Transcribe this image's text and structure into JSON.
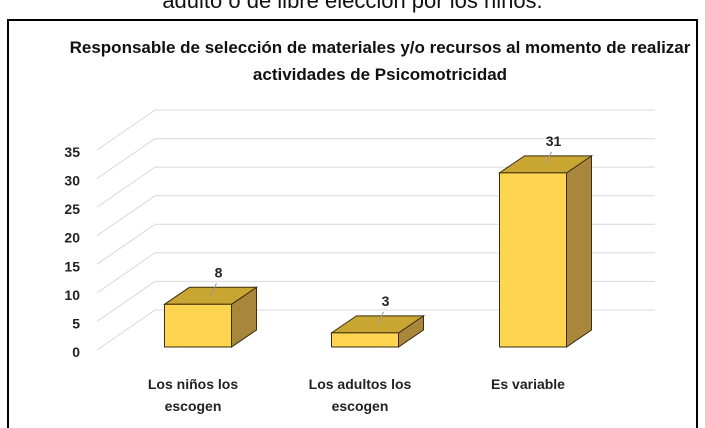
{
  "chart_data": {
    "type": "bar3d",
    "header_text": "adulto o de libre elección por los niños.",
    "title": "Responsable de selección de materiales y/o recursos al momento de realizar actividades de Psicomotricidad",
    "categories": [
      "Los niños los escogen",
      "Los adultos los escogen",
      "Es variable"
    ],
    "values": [
      8,
      3,
      31
    ],
    "color": "#FFD54F",
    "ylim": [
      0,
      35
    ],
    "yticks": [
      0,
      5,
      10,
      15,
      20,
      25,
      30,
      35
    ],
    "grid": true
  }
}
